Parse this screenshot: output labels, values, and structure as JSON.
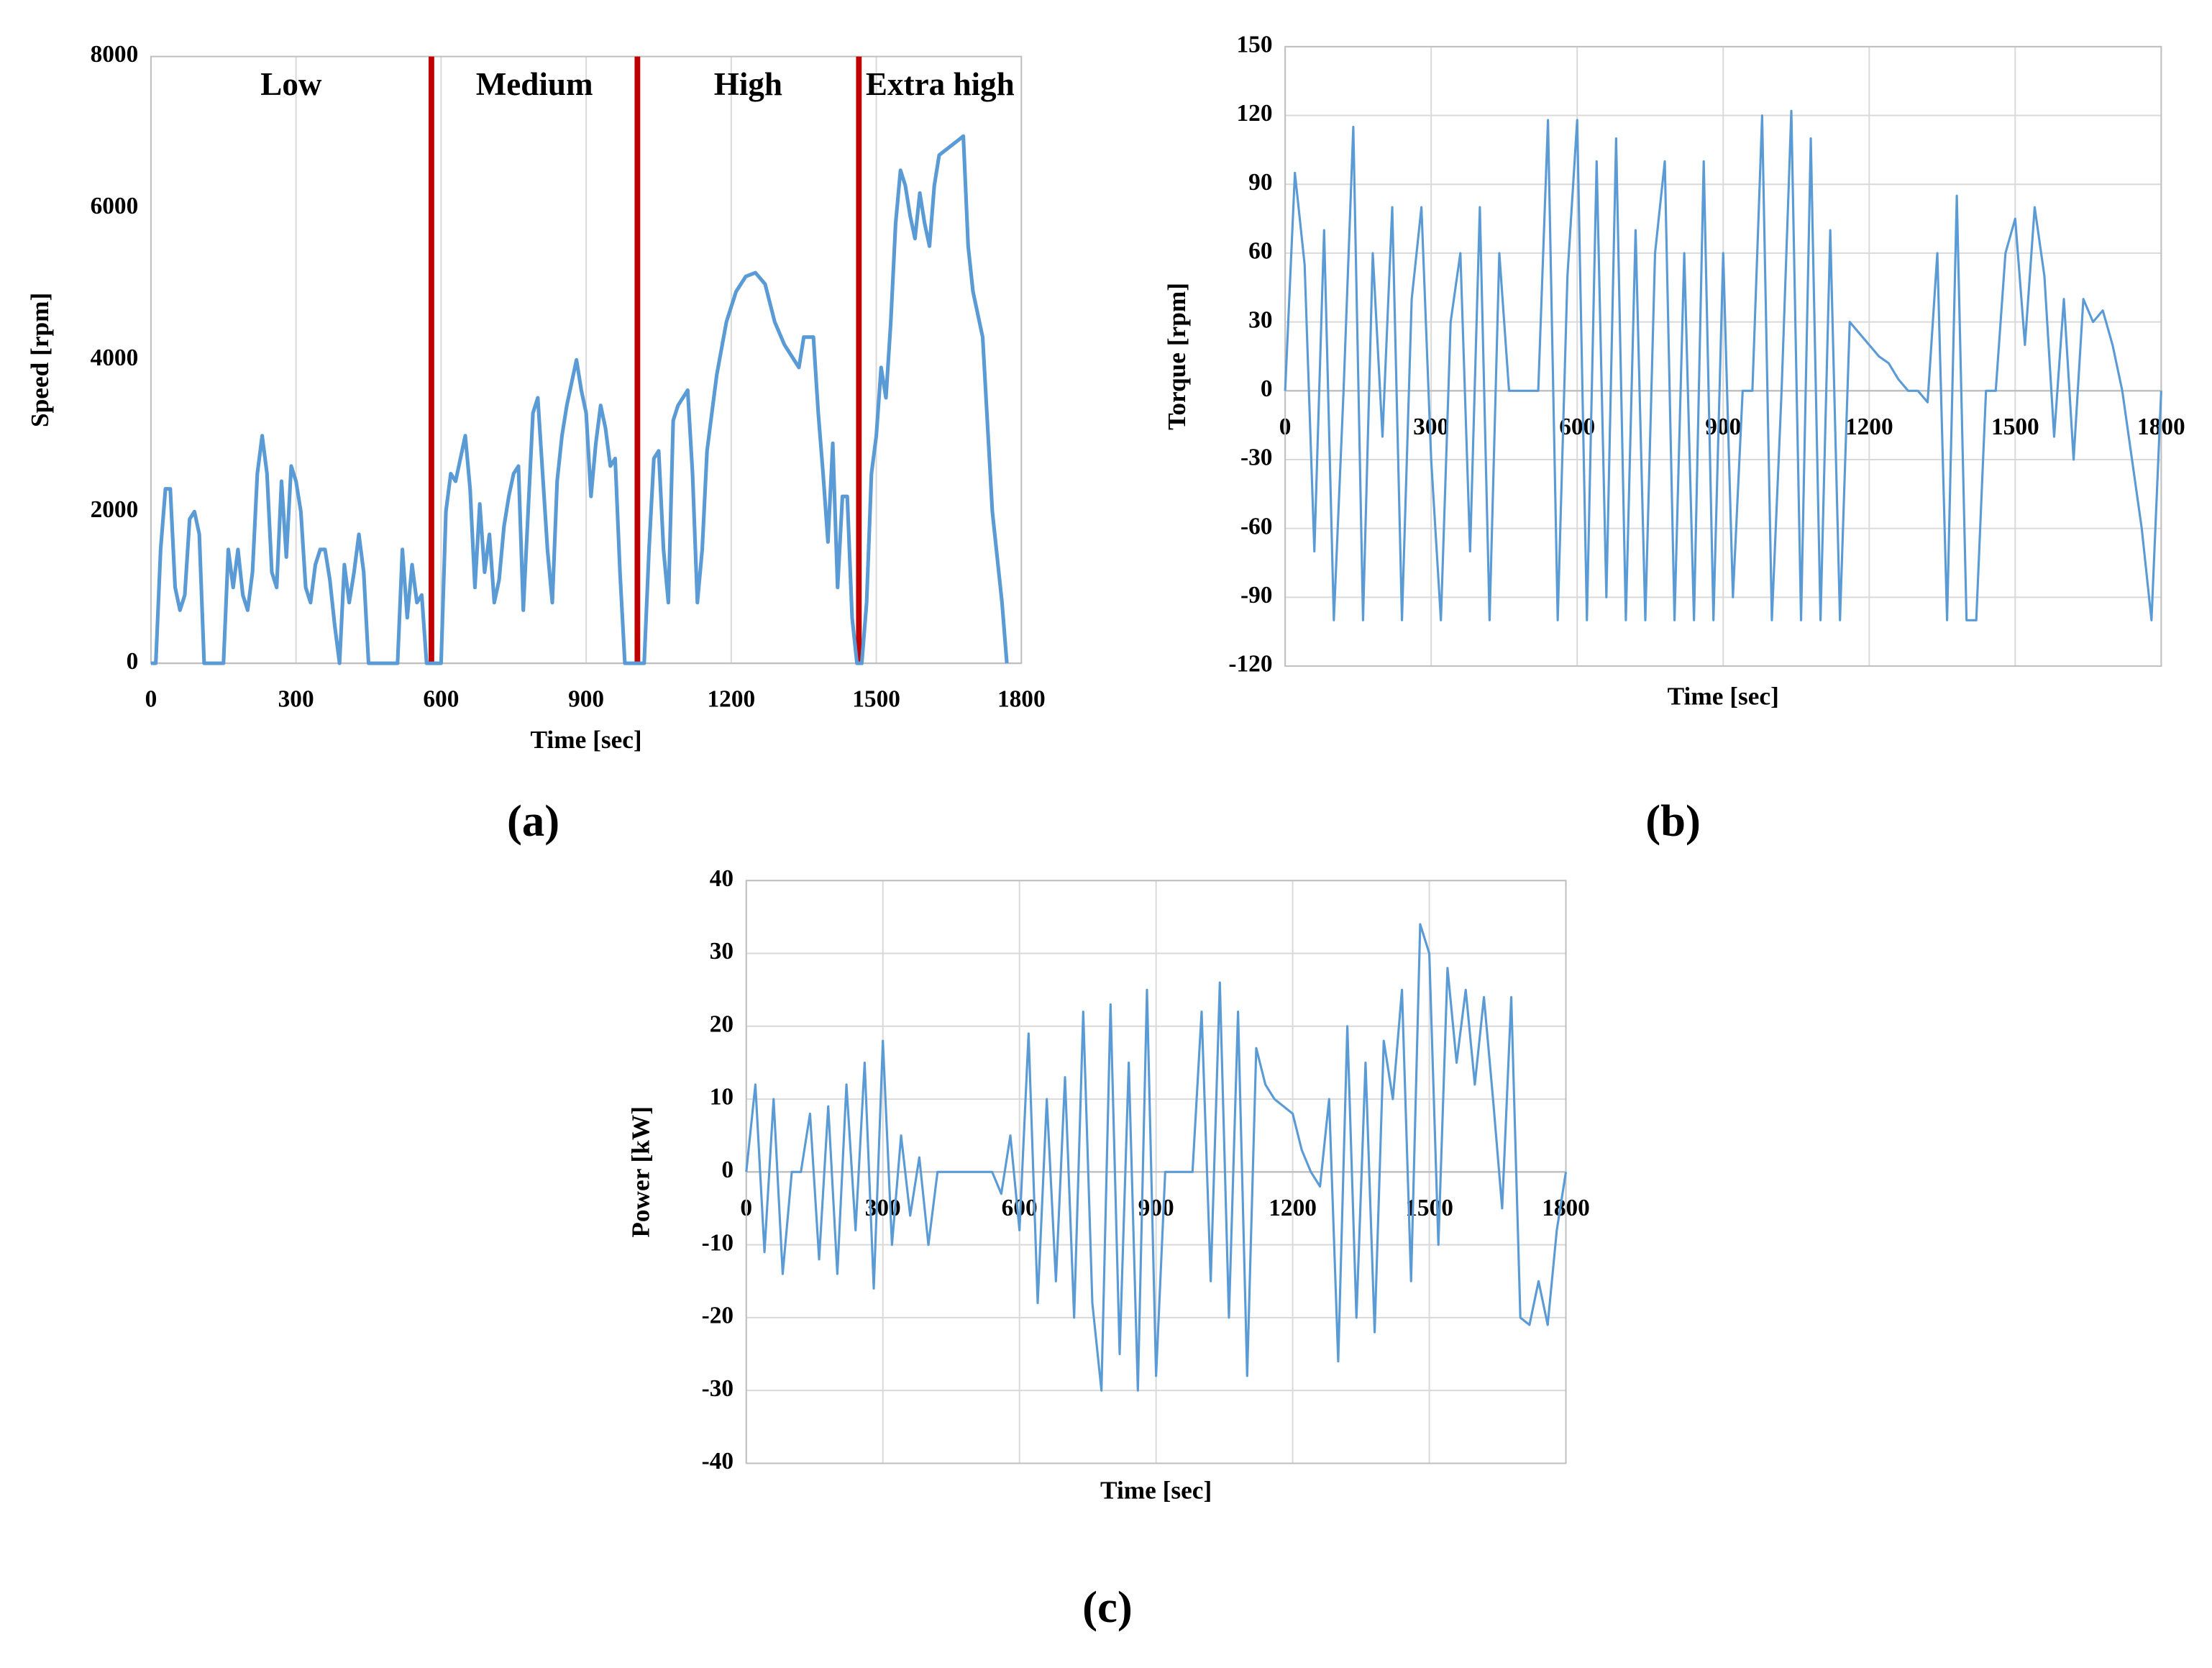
{
  "chart_data": [
    {
      "type": "line",
      "panel_label": "(a)",
      "x_label": "Time [sec]",
      "y_label": "Speed [rpm]",
      "x": [
        0,
        10,
        20,
        30,
        40,
        50,
        60,
        70,
        80,
        90,
        100,
        110,
        150,
        160,
        170,
        180,
        190,
        200,
        210,
        220,
        230,
        240,
        250,
        260,
        270,
        280,
        290,
        300,
        310,
        320,
        330,
        340,
        350,
        360,
        370,
        380,
        390,
        400,
        410,
        420,
        430,
        440,
        450,
        510,
        520,
        530,
        540,
        550,
        560,
        570,
        600,
        610,
        620,
        630,
        640,
        650,
        660,
        670,
        680,
        690,
        700,
        710,
        720,
        730,
        740,
        750,
        760,
        770,
        780,
        790,
        800,
        810,
        820,
        830,
        840,
        850,
        860,
        870,
        880,
        890,
        900,
        910,
        920,
        930,
        940,
        950,
        960,
        970,
        980,
        1020,
        1030,
        1040,
        1050,
        1060,
        1070,
        1080,
        1090,
        1100,
        1110,
        1120,
        1130,
        1140,
        1150,
        1170,
        1190,
        1210,
        1230,
        1250,
        1270,
        1290,
        1310,
        1330,
        1340,
        1350,
        1370,
        1380,
        1390,
        1400,
        1410,
        1420,
        1430,
        1440,
        1450,
        1460,
        1470,
        1480,
        1490,
        1500,
        1510,
        1520,
        1530,
        1540,
        1550,
        1560,
        1570,
        1580,
        1590,
        1600,
        1610,
        1620,
        1630,
        1650,
        1670,
        1680,
        1690,
        1700,
        1720,
        1740,
        1760,
        1770
      ],
      "values": [
        0,
        0,
        1500,
        2300,
        2300,
        1000,
        700,
        900,
        1900,
        2000,
        1700,
        0,
        0,
        1500,
        1000,
        1500,
        900,
        700,
        1200,
        2500,
        3000,
        2500,
        1200,
        1000,
        2400,
        1400,
        2600,
        2400,
        2000,
        1000,
        800,
        1300,
        1500,
        1500,
        1100,
        500,
        0,
        1300,
        800,
        1200,
        1700,
        1200,
        0,
        0,
        1500,
        600,
        1300,
        800,
        900,
        0,
        0,
        2000,
        2500,
        2400,
        2700,
        3000,
        2300,
        1000,
        2100,
        1200,
        1700,
        800,
        1100,
        1800,
        2200,
        2500,
        2600,
        700,
        2000,
        3300,
        3500,
        2500,
        1500,
        800,
        2400,
        3000,
        3400,
        3700,
        4000,
        3600,
        3300,
        2200,
        2900,
        3400,
        3100,
        2600,
        2700,
        1200,
        0,
        0,
        1500,
        2700,
        2800,
        1500,
        800,
        3200,
        3400,
        3500,
        3600,
        2500,
        800,
        1500,
        2800,
        3800,
        4500,
        4900,
        5100,
        5150,
        5000,
        4500,
        4200,
        4000,
        3900,
        4300,
        4300,
        3300,
        2500,
        1600,
        2900,
        1000,
        2200,
        2200,
        600,
        0,
        0,
        800,
        2500,
        3000,
        3900,
        3500,
        4500,
        5800,
        6500,
        6300,
        5900,
        5600,
        6200,
        5800,
        5500,
        6300,
        6700,
        6800,
        6900,
        6950,
        5500,
        4900,
        4300,
        2000,
        800,
        0
      ],
      "color": "#5b9bd5",
      "xlim": [
        0,
        1800
      ],
      "xticks": [
        0,
        300,
        600,
        900,
        1200,
        1500,
        1800
      ],
      "ylim": [
        0,
        8000
      ],
      "yticks": [
        0,
        2000,
        4000,
        6000,
        8000
      ],
      "grid": "x",
      "annotations": [
        "Low",
        "Medium",
        "High",
        "Extra high"
      ],
      "phase_boundaries": [
        580,
        1006,
        1464
      ],
      "boundary_color": "#c00000"
    },
    {
      "type": "line",
      "panel_label": "(b)",
      "x_label": "Time [sec]",
      "y_label": "Torque [rpm]",
      "x": [
        0,
        20,
        40,
        60,
        80,
        100,
        120,
        140,
        160,
        180,
        200,
        220,
        240,
        260,
        280,
        300,
        320,
        340,
        360,
        380,
        400,
        420,
        440,
        460,
        480,
        500,
        520,
        540,
        560,
        580,
        600,
        620,
        640,
        660,
        680,
        700,
        720,
        740,
        760,
        780,
        800,
        820,
        840,
        860,
        880,
        900,
        920,
        940,
        960,
        980,
        1000,
        1020,
        1040,
        1060,
        1080,
        1100,
        1120,
        1140,
        1160,
        1180,
        1200,
        1220,
        1240,
        1260,
        1280,
        1300,
        1320,
        1340,
        1360,
        1380,
        1400,
        1420,
        1440,
        1460,
        1480,
        1500,
        1520,
        1540,
        1560,
        1580,
        1600,
        1620,
        1640,
        1660,
        1680,
        1700,
        1720,
        1740,
        1760,
        1780,
        1800
      ],
      "values": [
        0,
        95,
        55,
        -70,
        70,
        -100,
        0,
        115,
        -100,
        60,
        -20,
        80,
        -100,
        40,
        80,
        -30,
        -100,
        30,
        60,
        -70,
        80,
        -100,
        60,
        0,
        0,
        0,
        0,
        118,
        -100,
        50,
        118,
        -100,
        100,
        -90,
        110,
        -100,
        70,
        -100,
        60,
        100,
        -100,
        60,
        -100,
        100,
        -100,
        60,
        -90,
        0,
        0,
        120,
        -100,
        0,
        122,
        -100,
        110,
        -100,
        70,
        -100,
        30,
        25,
        20,
        15,
        12,
        5,
        0,
        0,
        -5,
        60,
        -100,
        85,
        -100,
        -100,
        0,
        0,
        60,
        75,
        20,
        80,
        50,
        -20,
        40,
        -30,
        40,
        30,
        35,
        20,
        0,
        -30,
        -60,
        -100,
        0
      ],
      "color": "#5b9bd5",
      "xlim": [
        0,
        1800
      ],
      "xticks": [
        0,
        300,
        600,
        900,
        1200,
        1500,
        1800
      ],
      "ylim": [
        -120,
        150
      ],
      "yticks": [
        -120,
        -90,
        -60,
        -30,
        0,
        30,
        60,
        90,
        120,
        150
      ],
      "grid": "both"
    },
    {
      "type": "line",
      "panel_label": "(c)",
      "x_label": "Time [sec]",
      "y_label": "Power [kW]",
      "x": [
        0,
        20,
        40,
        60,
        80,
        100,
        120,
        140,
        160,
        180,
        200,
        220,
        240,
        260,
        280,
        300,
        320,
        340,
        360,
        380,
        400,
        420,
        440,
        460,
        480,
        500,
        520,
        540,
        560,
        580,
        600,
        620,
        640,
        660,
        680,
        700,
        720,
        740,
        760,
        780,
        800,
        820,
        840,
        860,
        880,
        900,
        920,
        940,
        960,
        980,
        1000,
        1020,
        1040,
        1060,
        1080,
        1100,
        1120,
        1140,
        1160,
        1180,
        1200,
        1220,
        1240,
        1260,
        1280,
        1300,
        1320,
        1340,
        1360,
        1380,
        1400,
        1420,
        1440,
        1460,
        1480,
        1500,
        1520,
        1540,
        1560,
        1580,
        1600,
        1620,
        1640,
        1660,
        1680,
        1700,
        1720,
        1740,
        1760,
        1780,
        1800
      ],
      "values": [
        0,
        12,
        -11,
        10,
        -14,
        0,
        0,
        8,
        -12,
        9,
        -14,
        12,
        -8,
        15,
        -16,
        18,
        -10,
        5,
        -6,
        2,
        -10,
        0,
        0,
        0,
        0,
        0,
        0,
        0,
        -3,
        5,
        -8,
        19,
        -18,
        10,
        -15,
        13,
        -20,
        22,
        -18,
        -30,
        23,
        -25,
        15,
        -30,
        25,
        -28,
        0,
        0,
        0,
        0,
        22,
        -15,
        26,
        -20,
        22,
        -28,
        17,
        12,
        10,
        9,
        8,
        3,
        0,
        -2,
        10,
        -26,
        20,
        -20,
        15,
        -22,
        18,
        10,
        25,
        -15,
        34,
        30,
        -10,
        28,
        15,
        25,
        12,
        24,
        10,
        -5,
        24,
        -20,
        -21,
        -15,
        -21,
        -8,
        0
      ],
      "color": "#5b9bd5",
      "xlim": [
        0,
        1800
      ],
      "xticks": [
        0,
        300,
        600,
        900,
        1200,
        1500,
        1800
      ],
      "ylim": [
        -40,
        40
      ],
      "yticks": [
        -40,
        -30,
        -20,
        -10,
        0,
        10,
        20,
        30,
        40
      ],
      "grid": "both"
    }
  ]
}
